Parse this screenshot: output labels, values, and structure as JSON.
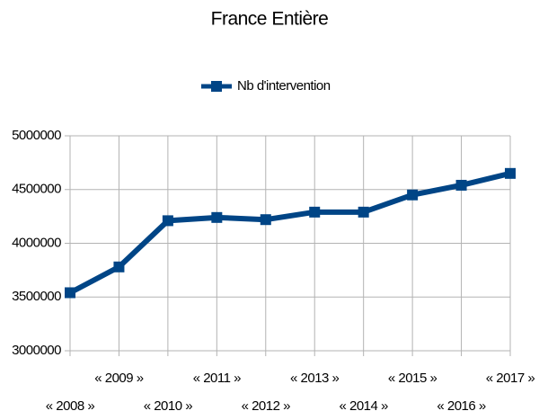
{
  "chart_data": {
    "type": "line",
    "title": "France Entière",
    "categories": [
      "« 2008 »",
      "« 2009 »",
      "« 2010 »",
      "« 2011 »",
      "« 2012 »",
      "« 2013 »",
      "« 2014 »",
      "« 2015 »",
      "« 2016 »",
      "« 2017 »"
    ],
    "series": [
      {
        "name": "Nb d'intervention",
        "color": "#004586",
        "values": [
          3540000,
          3780000,
          4210000,
          4240000,
          4220000,
          4290000,
          4290000,
          4450000,
          4540000,
          4650000
        ]
      }
    ],
    "ylim": [
      3000000,
      5000000
    ],
    "yticks": [
      3000000,
      3500000,
      4000000,
      4500000,
      5000000
    ],
    "grid": true,
    "legend": "top"
  }
}
